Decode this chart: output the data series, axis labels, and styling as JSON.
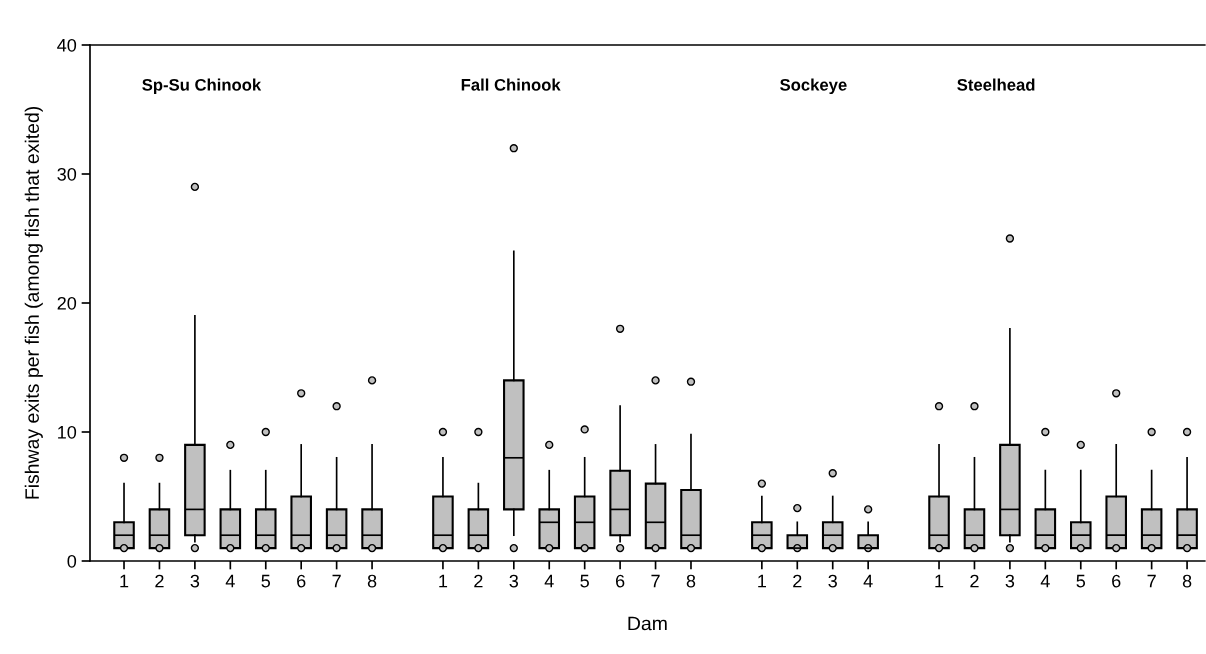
{
  "chart_data": {
    "type": "box",
    "xlabel": "Dam",
    "ylabel": "Fishway exits per fish (among fish that exited)",
    "annotations": [
      "Sp-Su Chinook",
      "Fall Chinook",
      "Sockeye",
      "Steelhead"
    ],
    "categories": [
      "1",
      "2",
      "3",
      "4",
      "5",
      "6",
      "7",
      "8",
      null,
      "1",
      "2",
      "3",
      "4",
      "5",
      "6",
      "7",
      "8",
      null,
      "1",
      "2",
      "3",
      "4",
      null,
      "1",
      "2",
      "3",
      "4",
      "5",
      "6",
      "7",
      "8"
    ],
    "color": "#c0c0c0",
    "ylim": [
      0,
      40
    ],
    "yticks": [
      0,
      10,
      20,
      30,
      40
    ],
    "grid": false,
    "boxes": [
      {
        "low": 1,
        "q1": 1,
        "median": 2,
        "q3": 3,
        "high": 6,
        "outliers": [
          1,
          8
        ]
      },
      {
        "low": 1,
        "q1": 1,
        "median": 2,
        "q3": 4,
        "high": 6,
        "outliers": [
          1,
          8
        ]
      },
      {
        "low": 1.5,
        "q1": 2,
        "median": 4,
        "q3": 9,
        "high": 19,
        "outliers": [
          1,
          29
        ]
      },
      {
        "low": 1,
        "q1": 1,
        "median": 2,
        "q3": 4,
        "high": 7,
        "outliers": [
          1,
          9
        ]
      },
      {
        "low": 1,
        "q1": 1,
        "median": 2,
        "q3": 4,
        "high": 7,
        "outliers": [
          1,
          10
        ]
      },
      {
        "low": 1,
        "q1": 1,
        "median": 2,
        "q3": 5,
        "high": 9,
        "outliers": [
          1,
          13
        ]
      },
      {
        "low": 1,
        "q1": 1,
        "median": 2,
        "q3": 4,
        "high": 8,
        "outliers": [
          1,
          12
        ]
      },
      {
        "low": 1,
        "q1": 1,
        "median": 2,
        "q3": 4,
        "high": 9,
        "outliers": [
          1,
          14
        ]
      },
      null,
      {
        "low": 1,
        "q1": 1,
        "median": 2,
        "q3": 5,
        "high": 8,
        "outliers": [
          1,
          10
        ]
      },
      {
        "low": 1,
        "q1": 1,
        "median": 2,
        "q3": 4,
        "high": 6,
        "outliers": [
          1,
          10
        ]
      },
      {
        "low": 2,
        "q1": 4,
        "median": 8,
        "q3": 14,
        "high": 24,
        "outliers": [
          1,
          32
        ]
      },
      {
        "low": 1,
        "q1": 1,
        "median": 3,
        "q3": 4,
        "high": 7,
        "outliers": [
          1,
          9
        ]
      },
      {
        "low": 1,
        "q1": 1,
        "median": 3,
        "q3": 5,
        "high": 8,
        "outliers": [
          1,
          10.2
        ]
      },
      {
        "low": 1.5,
        "q1": 2,
        "median": 4,
        "q3": 7,
        "high": 12,
        "outliers": [
          1,
          18
        ]
      },
      {
        "low": 1,
        "q1": 1,
        "median": 3,
        "q3": 6,
        "high": 9,
        "outliers": [
          1,
          14
        ]
      },
      {
        "low": 1,
        "q1": 1,
        "median": 2,
        "q3": 5.5,
        "high": 9.8,
        "outliers": [
          1,
          13.9
        ]
      },
      null,
      {
        "low": 1,
        "q1": 1,
        "median": 2,
        "q3": 3,
        "high": 5,
        "outliers": [
          1,
          6
        ]
      },
      {
        "low": 1,
        "q1": 1,
        "median": 1,
        "q3": 2,
        "high": 3,
        "outliers": [
          1,
          4.1
        ]
      },
      {
        "low": 1,
        "q1": 1,
        "median": 2,
        "q3": 3,
        "high": 5,
        "outliers": [
          1,
          6.8
        ]
      },
      {
        "low": 1,
        "q1": 1,
        "median": 1,
        "q3": 2,
        "high": 3,
        "outliers": [
          1,
          4
        ]
      },
      null,
      {
        "low": 1,
        "q1": 1,
        "median": 2,
        "q3": 5,
        "high": 9,
        "outliers": [
          1,
          12
        ]
      },
      {
        "low": 1,
        "q1": 1,
        "median": 2,
        "q3": 4,
        "high": 8,
        "outliers": [
          1,
          12
        ]
      },
      {
        "low": 1.5,
        "q1": 2,
        "median": 4,
        "q3": 9,
        "high": 18,
        "outliers": [
          1,
          25
        ]
      },
      {
        "low": 1,
        "q1": 1,
        "median": 2,
        "q3": 4,
        "high": 7,
        "outliers": [
          1,
          10
        ]
      },
      {
        "low": 1,
        "q1": 1,
        "median": 2,
        "q3": 3,
        "high": 7,
        "outliers": [
          1,
          9
        ]
      },
      {
        "low": 1,
        "q1": 1,
        "median": 2,
        "q3": 5,
        "high": 9,
        "outliers": [
          1,
          13
        ]
      },
      {
        "low": 1,
        "q1": 1,
        "median": 2,
        "q3": 4,
        "high": 7,
        "outliers": [
          1,
          10
        ]
      },
      {
        "low": 1,
        "q1": 1,
        "median": 2,
        "q3": 4,
        "high": 8,
        "outliers": [
          1,
          10
        ]
      }
    ]
  }
}
